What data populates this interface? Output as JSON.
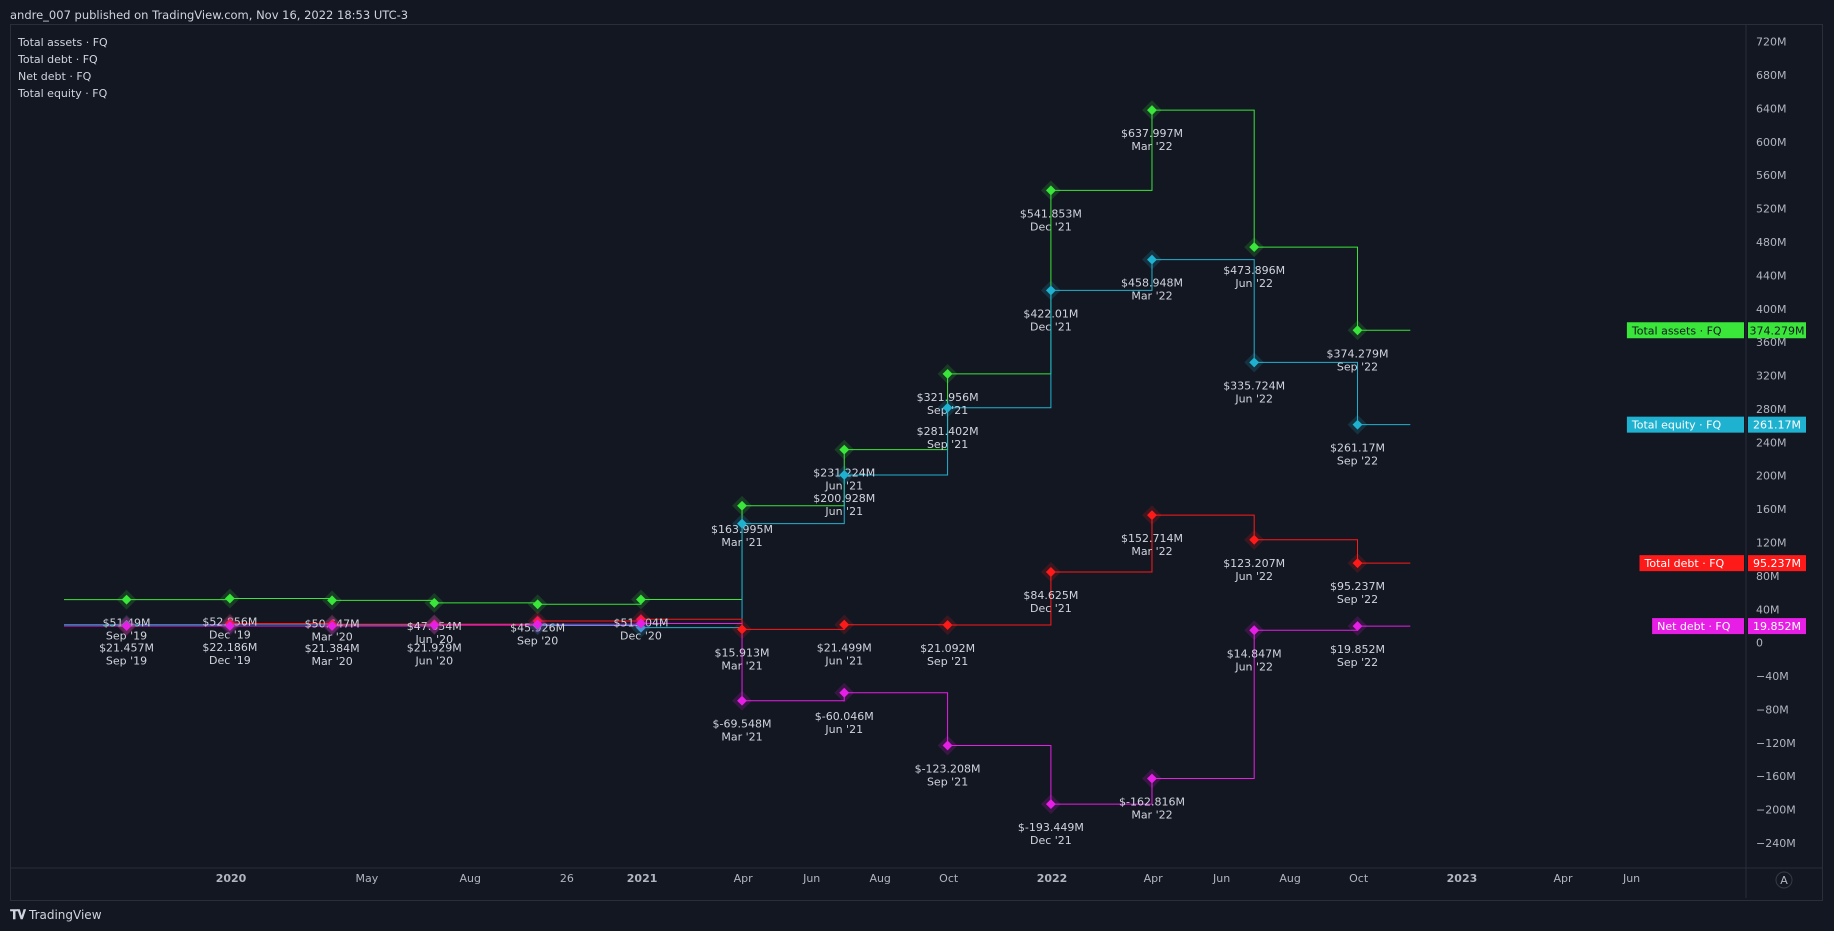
{
  "header": {
    "text": "andre_007 published on TradingView.com, Nov 16, 2022 18:53 UTC-3"
  },
  "legend": [
    "Total assets · FQ",
    "Total debt · FQ",
    "Net debt · FQ",
    "Total equity · FQ"
  ],
  "footer": {
    "brand": "TradingView"
  },
  "colors": {
    "background": "#131722",
    "assets": "#39e639",
    "debt": "#ff1a1a",
    "net_debt": "#e61ee6",
    "equity": "#1fb2d0",
    "text": "#d1d4dc",
    "grid": "#2a2e39"
  },
  "chart_data": {
    "type": "line",
    "step": true,
    "ylim": [
      -270,
      740
    ],
    "y_ticks": [
      "720M",
      "680M",
      "640M",
      "600M",
      "560M",
      "520M",
      "480M",
      "440M",
      "400M",
      "360M",
      "320M",
      "280M",
      "240M",
      "200M",
      "160M",
      "120M",
      "80M",
      "40M",
      "0",
      "−40M",
      "−80M",
      "−120M",
      "−160M",
      "−200M",
      "−240M"
    ],
    "x_ticks": [
      {
        "label": "2020",
        "date": "2020-01-01"
      },
      {
        "label": "May",
        "date": "2020-05-01"
      },
      {
        "label": "Aug",
        "date": "2020-08-01"
      },
      {
        "label": "26",
        "date": "2020-10-26"
      },
      {
        "label": "2021",
        "date": "2021-01-01"
      },
      {
        "label": "Apr",
        "date": "2021-04-01"
      },
      {
        "label": "Jun",
        "date": "2021-06-01"
      },
      {
        "label": "Aug",
        "date": "2021-08-01"
      },
      {
        "label": "Oct",
        "date": "2021-10-01"
      },
      {
        "label": "2022",
        "date": "2022-01-01"
      },
      {
        "label": "Apr",
        "date": "2022-04-01"
      },
      {
        "label": "Jun",
        "date": "2022-06-01"
      },
      {
        "label": "Aug",
        "date": "2022-08-01"
      },
      {
        "label": "Oct",
        "date": "2022-10-01"
      },
      {
        "label": "2023",
        "date": "2023-01-01"
      },
      {
        "label": "Apr",
        "date": "2023-04-01"
      },
      {
        "label": "Jun",
        "date": "2023-06-01"
      }
    ],
    "x_range": [
      "2019-06-20",
      "2023-09-10"
    ],
    "periods": [
      "Sep '19",
      "Dec '19",
      "Mar '20",
      "Jun '20",
      "Sep '20",
      "Dec '20",
      "Mar '21",
      "Jun '21",
      "Sep '21",
      "Dec '21",
      "Mar '22",
      "Jun '22",
      "Sep '22"
    ],
    "period_dates": [
      "2019-09-30",
      "2019-12-31",
      "2020-03-31",
      "2020-06-30",
      "2020-09-30",
      "2020-12-31",
      "2021-03-31",
      "2021-06-30",
      "2021-09-30",
      "2021-12-31",
      "2022-03-31",
      "2022-06-30",
      "2022-09-30"
    ],
    "series": [
      {
        "name": "Total assets · FQ",
        "key": "assets",
        "color": "#39e639",
        "values": [
          51.49,
          52.856,
          50.647,
          47.654,
          45.926,
          51.704,
          163.995,
          231.224,
          321.956,
          541.853,
          637.997,
          473.896,
          374.279
        ],
        "labels": [
          "$51.49M",
          "$52.856M",
          "$50.647M",
          "$47.654M",
          "$45.926M",
          "$51.704M",
          "$163.995M",
          "$231.224M",
          "$321.956M",
          "$541.853M",
          "$637.997M",
          "$473.896M",
          "$374.279M"
        ],
        "last": "374.279M"
      },
      {
        "name": "Total equity · FQ",
        "key": "equity",
        "color": "#1fb2d0",
        "values": [
          21.457,
          22.186,
          21.384,
          21.929,
          20.5,
          18.0,
          142.6,
          200.928,
          281.402,
          422.01,
          458.948,
          335.724,
          261.17
        ],
        "labels": [
          "$21.457M",
          "$22.186M",
          "$21.384M",
          "$21.929M",
          "",
          "",
          "",
          "$200.928M",
          "$281.402M",
          "$422.01M",
          "$458.948M",
          "$335.724M",
          "$261.17M"
        ],
        "last": "261.17M"
      },
      {
        "name": "Total debt · FQ",
        "key": "debt",
        "color": "#ff1a1a",
        "values": [
          20,
          23,
          22,
          22,
          26,
          28,
          15.913,
          21.499,
          21.092,
          84.625,
          152.714,
          123.207,
          95.237
        ],
        "labels": [
          "",
          "",
          "",
          "",
          "",
          "",
          "$15.913M",
          "$21.499M",
          "$21.092M",
          "$84.625M",
          "$152.714M",
          "$123.207M",
          "$95.237M"
        ],
        "last": "95.237M"
      },
      {
        "name": "Net debt · FQ",
        "key": "net_debt",
        "color": "#e61ee6",
        "values": [
          20,
          20,
          20,
          21,
          22,
          23,
          -69.548,
          -60.046,
          -123.208,
          -193.449,
          -162.816,
          14.847,
          19.852
        ],
        "labels": [
          "",
          "",
          "",
          "",
          "",
          "",
          "$-69.548M",
          "$-60.046M",
          "$-123.208M",
          "$-193.449M",
          "$-162.816M",
          "$14.847M",
          "$19.852M"
        ],
        "last": "19.852M"
      }
    ],
    "end_tags": [
      {
        "series": "Total assets · FQ",
        "text": "Total assets · FQ",
        "value": "374.279M"
      },
      {
        "series": "Total equity · FQ",
        "text": "Total equity · FQ",
        "value": "261.17M"
      },
      {
        "series": "Total debt · FQ",
        "text": "Total debt · FQ",
        "value": "95.237M"
      },
      {
        "series": "Net debt · FQ",
        "text": "Net debt · FQ",
        "value": "19.852M"
      }
    ],
    "axis_corner": "A"
  }
}
